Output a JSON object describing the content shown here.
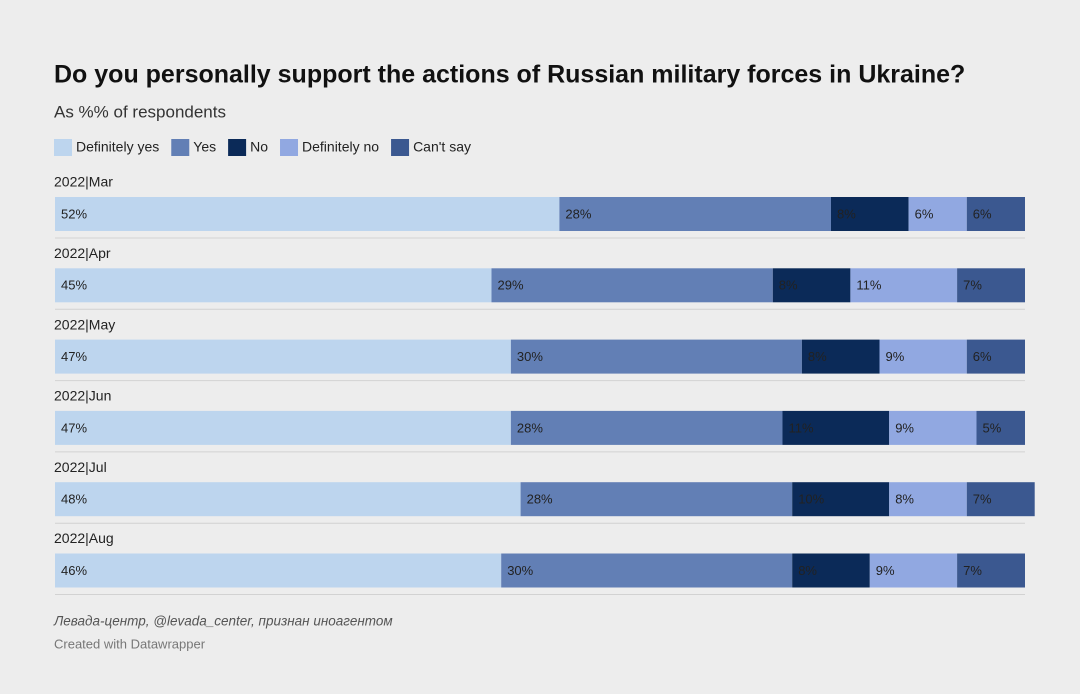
{
  "chart_data": {
    "type": "stacked-bar",
    "title": "Do you personally support the actions of Russian military forces in Ukraine?",
    "subtitle": "As %% of respondents",
    "categories": [
      "2022|Mar",
      "2022|Apr",
      "2022|May",
      "2022|Jun",
      "2022|Jul",
      "2022|Aug"
    ],
    "xlim": [
      0,
      100
    ],
    "series": [
      {
        "name": "Definitely yes",
        "color": "#bdd5ee",
        "values": [
          52,
          45,
          47,
          47,
          48,
          46
        ],
        "value_labels": [
          "52%",
          "45%",
          "47%",
          "47%",
          "48%",
          "46%"
        ]
      },
      {
        "name": "Yes",
        "color": "#627fb5",
        "values": [
          28,
          29,
          30,
          28,
          28,
          30
        ],
        "value_labels": [
          "28%",
          "29%",
          "30%",
          "28%",
          "28%",
          "30%"
        ]
      },
      {
        "name": "No",
        "color": "#0b2a58",
        "values": [
          8,
          8,
          8,
          11,
          10,
          8
        ],
        "value_labels": [
          "8%",
          "8%",
          "8%",
          "11%",
          "10%",
          "8%"
        ]
      },
      {
        "name": "Definitely no",
        "color": "#91a8e1",
        "values": [
          6,
          11,
          9,
          9,
          8,
          9
        ],
        "value_labels": [
          "6%",
          "11%",
          "9%",
          "9%",
          "8%",
          "9%"
        ]
      },
      {
        "name": "Can't say",
        "color": "#3b5890",
        "values": [
          6,
          7,
          6,
          5,
          7,
          7
        ],
        "value_labels": [
          "6%",
          "7%",
          "6%",
          "5%",
          "7%",
          "7%"
        ]
      }
    ],
    "source": "Левада-центр, @levada_center, признан иноагентом",
    "credit": "Created with Datawrapper"
  }
}
